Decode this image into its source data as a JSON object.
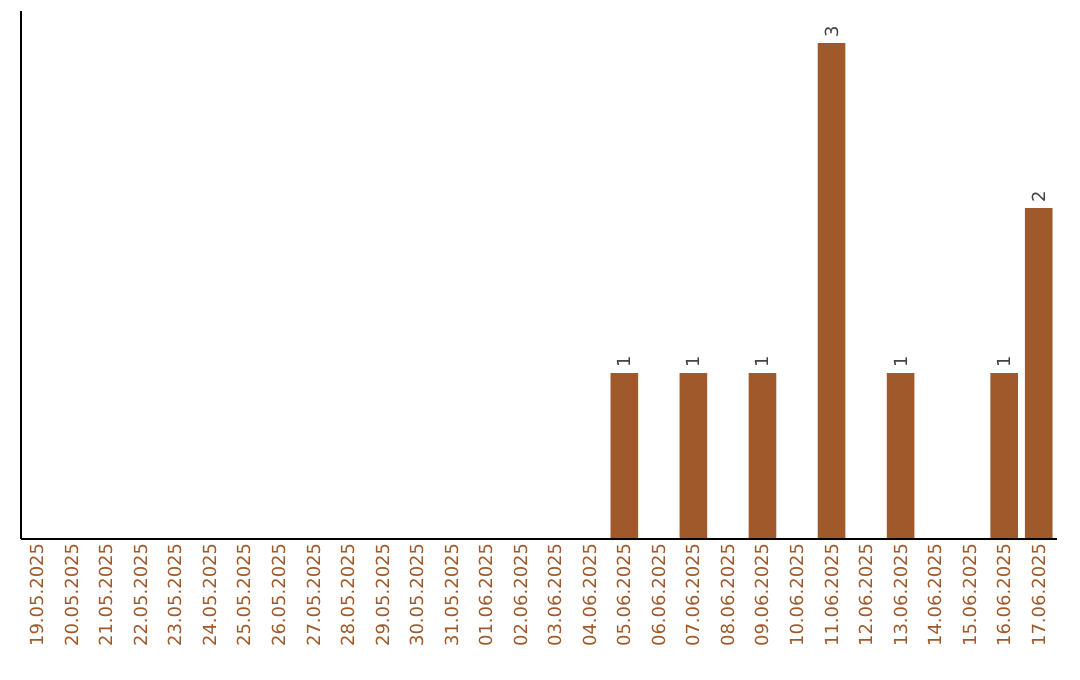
{
  "chart_data": {
    "type": "bar",
    "categories": [
      "19.05.2025",
      "20.05.2025",
      "21.05.2025",
      "22.05.2025",
      "23.05.2025",
      "24.05.2025",
      "25.05.2025",
      "26.05.2025",
      "27.05.2025",
      "28.05.2025",
      "29.05.2025",
      "30.05.2025",
      "31.05.2025",
      "01.06.2025",
      "02.06.2025",
      "03.06.2025",
      "04.06.2025",
      "05.06.2025",
      "06.06.2025",
      "07.06.2025",
      "08.06.2025",
      "09.06.2025",
      "10.06.2025",
      "11.06.2025",
      "12.06.2025",
      "13.06.2025",
      "14.06.2025",
      "15.06.2025",
      "16.06.2025",
      "17.06.2025"
    ],
    "values": [
      null,
      null,
      null,
      null,
      null,
      null,
      null,
      null,
      null,
      null,
      null,
      null,
      null,
      null,
      null,
      null,
      null,
      1,
      null,
      1,
      null,
      1,
      null,
      3,
      null,
      1,
      null,
      null,
      1,
      2
    ],
    "value_labels": [
      null,
      null,
      null,
      null,
      null,
      null,
      null,
      null,
      null,
      null,
      null,
      null,
      null,
      null,
      null,
      null,
      null,
      "1",
      null,
      "1",
      null,
      "1",
      null,
      "3",
      null,
      "1",
      null,
      null,
      "1",
      "2"
    ],
    "color": "#a0592a",
    "ylim": [
      0,
      3.2
    ],
    "tick_labels": "x",
    "grid": false
  }
}
